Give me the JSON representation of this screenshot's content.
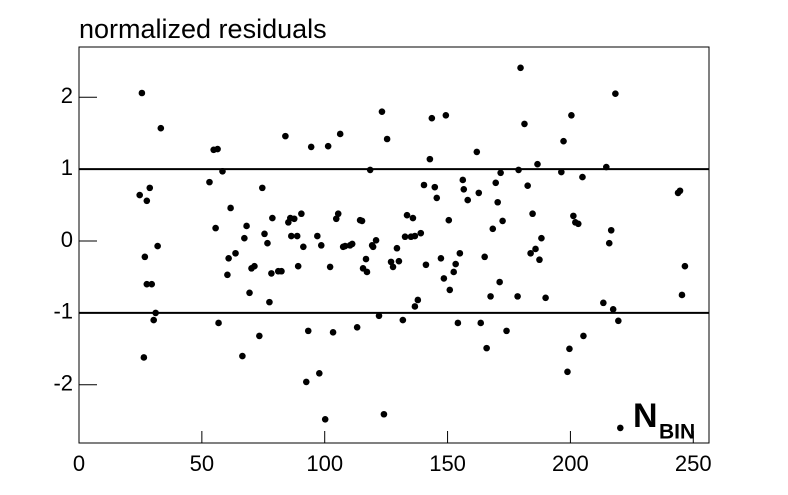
{
  "chart_data": {
    "type": "scatter",
    "title": "normalized residuals",
    "annotation": {
      "text": "N",
      "subscript": "BIN"
    },
    "x": [
      24.7,
      25.6,
      26.8,
      27.6,
      27.6,
      28.8,
      29.6,
      31.2,
      30.4,
      32.0,
      33.3,
      26.4,
      53.1,
      54.8,
      56.4,
      55.6,
      56.8,
      58.4,
      60.9,
      60.4,
      61.7,
      63.7,
      66.5,
      67.3,
      68.2,
      70.2,
      69.4,
      71.4,
      73.4,
      74.6,
      75.5,
      76.7,
      77.5,
      78.3,
      78.7,
      81.1,
      82.4,
      84.0,
      85.2,
      86.0,
      86.4,
      87.6,
      88.8,
      89.2,
      90.5,
      91.3,
      92.5,
      93.3,
      94.5,
      97.0,
      97.8,
      98.6,
      100.2,
      101.4,
      102.2,
      103.4,
      104.7,
      105.5,
      106.3,
      107.5,
      108.3,
      110.3,
      111.2,
      113.2,
      114.4,
      115.2,
      115.6,
      116.8,
      117.2,
      118.5,
      119.3,
      119.7,
      120.9,
      122.1,
      123.3,
      124.1,
      125.4,
      127.0,
      127.8,
      129.4,
      130.2,
      131.8,
      132.7,
      133.5,
      135.1,
      135.9,
      136.7,
      136.7,
      137.9,
      139.1,
      140.4,
      141.2,
      142.8,
      143.6,
      144.8,
      145.6,
      147.3,
      148.5,
      149.3,
      150.5,
      150.9,
      152.5,
      153.3,
      154.2,
      155.0,
      156.2,
      156.6,
      158.2,
      161.9,
      162.7,
      163.5,
      165.1,
      165.9,
      167.5,
      168.4,
      169.6,
      170.4,
      171.2,
      171.6,
      172.4,
      174.0,
      178.5,
      178.9,
      179.7,
      181.3,
      182.6,
      183.8,
      184.6,
      185.8,
      186.6,
      187.4,
      188.2,
      189.9,
      196.3,
      197.2,
      198.8,
      199.6,
      200.4,
      201.2,
      202.0,
      203.2,
      204.9,
      205.3,
      213.4,
      214.6,
      215.8,
      216.6,
      217.4,
      218.3,
      219.5,
      220.3,
      243.8,
      244.6,
      245.4,
      246.6
    ],
    "values": [
      0.64,
      2.06,
      -0.22,
      -0.6,
      0.56,
      0.74,
      -0.6,
      -1.0,
      -1.1,
      -0.07,
      1.57,
      -1.62,
      0.82,
      1.27,
      1.28,
      0.18,
      -1.14,
      0.97,
      -0.24,
      -0.47,
      0.46,
      -0.17,
      -1.6,
      0.04,
      0.21,
      -0.38,
      -0.72,
      -0.35,
      -1.32,
      0.74,
      0.1,
      -0.03,
      -0.85,
      -0.45,
      0.32,
      -0.42,
      -0.42,
      1.46,
      0.26,
      0.32,
      0.07,
      0.31,
      0.07,
      -0.35,
      0.38,
      -0.08,
      -1.96,
      -1.25,
      1.31,
      0.07,
      -1.84,
      -0.06,
      -2.48,
      1.32,
      -0.36,
      -1.27,
      0.31,
      0.38,
      1.49,
      -0.08,
      -0.07,
      -0.06,
      -0.04,
      -1.2,
      0.29,
      0.28,
      -0.38,
      -0.25,
      -0.43,
      0.99,
      -0.06,
      -0.08,
      0.01,
      -1.04,
      1.8,
      -2.41,
      1.42,
      -0.29,
      -0.36,
      -0.1,
      -0.28,
      -1.1,
      0.06,
      0.36,
      0.06,
      0.32,
      0.07,
      -0.91,
      -0.82,
      0.11,
      0.78,
      -0.33,
      1.14,
      1.71,
      0.75,
      0.6,
      -0.24,
      -0.52,
      1.75,
      0.29,
      -0.68,
      -0.43,
      -0.32,
      -1.14,
      -0.17,
      0.85,
      0.72,
      0.57,
      1.24,
      0.67,
      -1.14,
      -0.22,
      -1.49,
      -0.77,
      0.17,
      0.81,
      0.54,
      -0.57,
      0.95,
      0.28,
      -1.25,
      -0.77,
      0.99,
      2.41,
      1.63,
      0.77,
      -0.17,
      0.38,
      -0.11,
      1.07,
      -0.26,
      0.04,
      -0.79,
      0.96,
      1.39,
      -1.82,
      -1.5,
      1.75,
      0.35,
      0.26,
      0.24,
      0.89,
      -1.32,
      -0.86,
      1.03,
      -0.03,
      0.15,
      -0.95,
      2.05,
      -1.11,
      -2.6,
      0.67,
      0.7,
      -0.75,
      -0.35
    ],
    "color": "#000000",
    "reference_lines": [
      1,
      -1
    ],
    "xlim": [
      0,
      256.4
    ],
    "xticks": [
      0,
      50,
      100,
      150,
      200,
      250
    ],
    "ylim": [
      -2.81,
      2.7
    ],
    "yticks": [
      -2,
      -1,
      0,
      1,
      2
    ]
  }
}
